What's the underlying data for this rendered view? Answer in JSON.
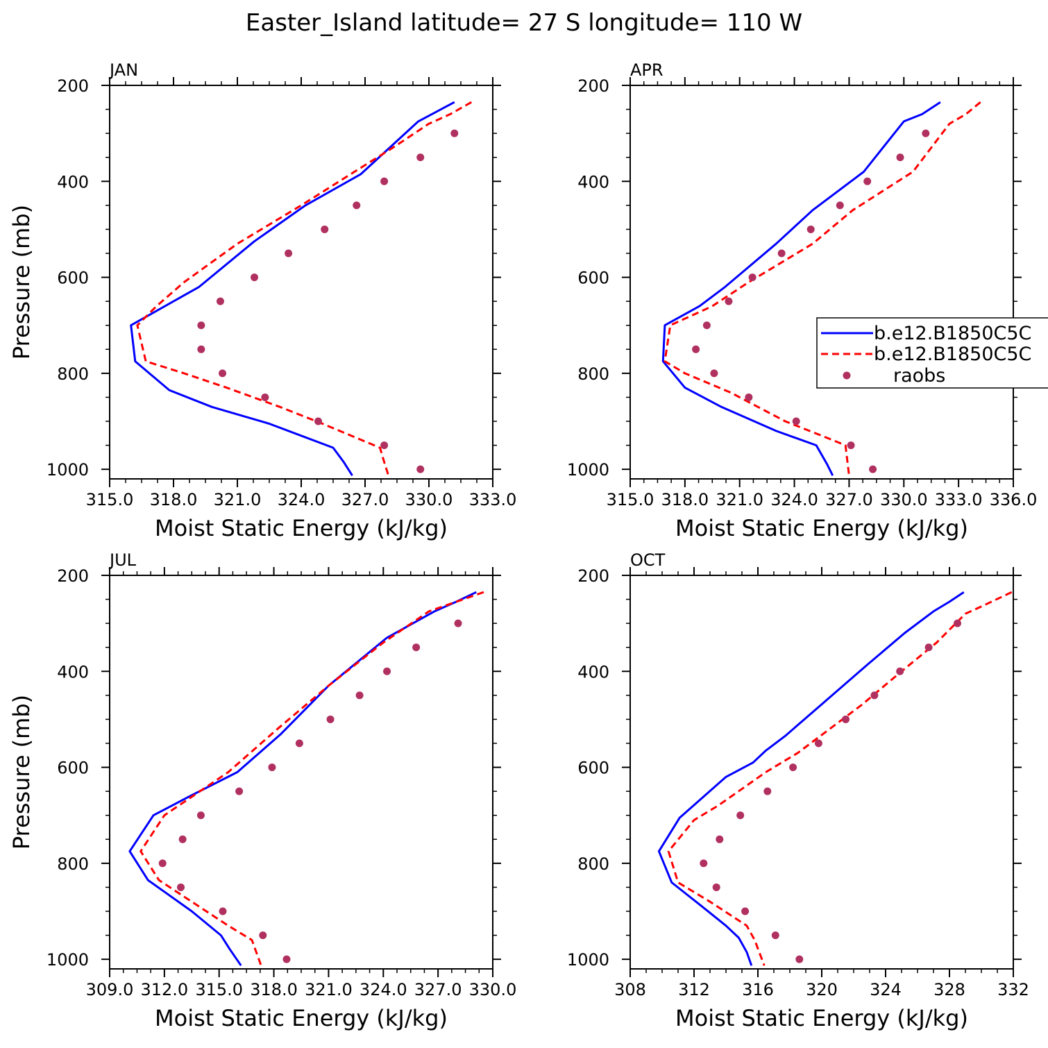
{
  "title": "Easter_Island  latitude= 27 S longitude= 110 W",
  "colors": {
    "model_a": "#0000ff",
    "model_b": "#ff0000",
    "raobs": "#b03060",
    "axes": "#000000",
    "background": "#ffffff"
  },
  "legend": {
    "entries": [
      "b.e12.B1850C5C",
      "b.e12.B1850C5C",
      "raobs"
    ],
    "location": "right side of APR panel"
  },
  "chart_data": [
    {
      "type": "line",
      "panel": "JAN",
      "xlabel": "Moist Static Energy (kJ/kg)",
      "ylabel": "Pressure (mb)",
      "xlim": [
        315,
        333
      ],
      "ylim": [
        1020,
        200
      ],
      "xticks": [
        315,
        318,
        321,
        324,
        327,
        330,
        333
      ],
      "xtick_labels": [
        "315.0",
        "318.0",
        "321.0",
        "324.0",
        "327.0",
        "330.0",
        "333.0"
      ],
      "yticks": [
        200,
        400,
        600,
        800,
        1000
      ],
      "ytick_labels": [
        "200",
        "400",
        "600",
        "800",
        "1000"
      ],
      "series": [
        {
          "name": "b.e12.B1850C5C",
          "style": "solid",
          "x": [
            331.2,
            329.5,
            326.8,
            324.2,
            321.8,
            319.2,
            317.6,
            316.0,
            316.2,
            317.8,
            319.8,
            322.5,
            324.0,
            325.5,
            326.0,
            326.4
          ],
          "y": [
            235,
            275,
            385,
            450,
            525,
            620,
            660,
            700,
            775,
            835,
            870,
            905,
            930,
            955,
            985,
            1013
          ]
        },
        {
          "name": "b.e12.B1850C5C",
          "style": "dashed",
          "x": [
            332.0,
            331.0,
            330.0,
            328.3,
            326.5,
            324.0,
            321.0,
            318.5,
            317.2,
            316.3,
            316.7,
            318.5,
            320.5,
            323.0,
            325.0,
            327.7,
            327.9,
            328.1
          ],
          "y": [
            235,
            260,
            280,
            330,
            380,
            450,
            530,
            610,
            660,
            700,
            775,
            800,
            830,
            870,
            905,
            955,
            985,
            1013
          ]
        },
        {
          "name": "raobs",
          "style": "dots",
          "x": [
            331.2,
            329.6,
            327.9,
            326.6,
            325.1,
            323.4,
            321.8,
            320.2,
            319.3,
            319.3,
            320.3,
            322.3,
            324.8,
            327.9,
            329.6
          ],
          "y": [
            300,
            350,
            400,
            450,
            500,
            550,
            600,
            650,
            700,
            750,
            800,
            850,
            900,
            950,
            1000
          ]
        }
      ]
    },
    {
      "type": "line",
      "panel": "APR",
      "xlabel": "Moist Static Energy (kJ/kg)",
      "ylabel": "",
      "xlim": [
        315,
        336
      ],
      "ylim": [
        1020,
        200
      ],
      "xticks": [
        315,
        318,
        321,
        324,
        327,
        330,
        333,
        336
      ],
      "xtick_labels": [
        "315.0",
        "318.0",
        "321.0",
        "324.0",
        "327.0",
        "330.0",
        "333.0",
        "336.0"
      ],
      "yticks": [
        200,
        400,
        600,
        800,
        1000
      ],
      "ytick_labels": [
        "200",
        "400",
        "600",
        "800",
        "1000"
      ],
      "series": [
        {
          "name": "b.e12.B1850C5C",
          "style": "solid",
          "x": [
            332.0,
            331.0,
            330.0,
            327.8,
            325.0,
            323.0,
            320.2,
            318.8,
            316.9,
            316.8,
            318.0,
            320.0,
            323.0,
            325.2,
            325.8,
            326.1
          ],
          "y": [
            235,
            260,
            275,
            380,
            460,
            530,
            620,
            660,
            700,
            775,
            830,
            870,
            920,
            950,
            990,
            1013
          ]
        },
        {
          "name": "b.e12.B1850C5C",
          "style": "dashed",
          "x": [
            334.2,
            333.4,
            332.5,
            330.5,
            327.2,
            325.0,
            321.5,
            319.5,
            317.2,
            316.9,
            318.0,
            320.5,
            323.5,
            325.5,
            326.8,
            327.0
          ],
          "y": [
            235,
            260,
            280,
            380,
            460,
            530,
            610,
            660,
            700,
            775,
            800,
            840,
            900,
            930,
            950,
            1013
          ]
        },
        {
          "name": "raobs",
          "style": "dots",
          "x": [
            331.2,
            329.8,
            328.0,
            326.5,
            324.9,
            323.3,
            321.7,
            320.4,
            319.2,
            318.6,
            319.6,
            321.5,
            324.1,
            327.1,
            328.3
          ],
          "y": [
            300,
            350,
            400,
            450,
            500,
            550,
            600,
            650,
            700,
            750,
            800,
            850,
            900,
            950,
            1000
          ]
        }
      ]
    },
    {
      "type": "line",
      "panel": "JUL",
      "xlabel": "Moist Static Energy (kJ/kg)",
      "ylabel": "Pressure (mb)",
      "xlim": [
        309,
        330
      ],
      "ylim": [
        1020,
        200
      ],
      "xticks": [
        309,
        312,
        315,
        318,
        321,
        324,
        327,
        330
      ],
      "xtick_labels": [
        "309.0",
        "312.0",
        "315.0",
        "318.0",
        "321.0",
        "324.0",
        "327.0",
        "330.0"
      ],
      "yticks": [
        200,
        400,
        600,
        800,
        1000
      ],
      "ytick_labels": [
        "200",
        "400",
        "600",
        "800",
        "1000"
      ],
      "series": [
        {
          "name": "b.e12.B1850C5C",
          "style": "solid",
          "x": [
            329.1,
            328.0,
            326.8,
            324.2,
            321.0,
            318.4,
            316.0,
            313.4,
            311.4,
            310.1,
            311.1,
            313.5,
            315.1,
            315.6,
            316.2
          ],
          "y": [
            235,
            255,
            275,
            330,
            430,
            530,
            610,
            660,
            700,
            775,
            835,
            900,
            950,
            980,
            1013
          ]
        },
        {
          "name": "b.e12.B1850C5C",
          "style": "dashed",
          "x": [
            329.5,
            326.5,
            324.0,
            321.0,
            318.2,
            315.5,
            312.0,
            310.7,
            311.7,
            313.5,
            315.5,
            316.8,
            317.3
          ],
          "y": [
            235,
            275,
            340,
            430,
            520,
            610,
            700,
            775,
            835,
            880,
            930,
            960,
            1013
          ]
        },
        {
          "name": "raobs",
          "style": "dots",
          "x": [
            328.1,
            325.8,
            324.2,
            322.7,
            321.1,
            319.4,
            317.9,
            316.1,
            314.0,
            313.0,
            311.9,
            312.9,
            315.2,
            317.4,
            318.7
          ],
          "y": [
            300,
            350,
            400,
            450,
            500,
            550,
            600,
            650,
            700,
            750,
            800,
            850,
            900,
            950,
            1000
          ]
        }
      ]
    },
    {
      "type": "line",
      "panel": "OCT",
      "xlabel": "Moist Static Energy (kJ/kg)",
      "ylabel": "",
      "xlim": [
        308,
        332
      ],
      "ylim": [
        1020,
        200
      ],
      "xticks": [
        308,
        312,
        316,
        320,
        324,
        328,
        332
      ],
      "xtick_labels": [
        "308",
        "312",
        "316",
        "320",
        "324",
        "328",
        "332"
      ],
      "yticks": [
        200,
        400,
        600,
        800,
        1000
      ],
      "ytick_labels": [
        "200",
        "400",
        "600",
        "800",
        "1000"
      ],
      "series": [
        {
          "name": "b.e12.B1850C5C",
          "style": "solid",
          "x": [
            328.9,
            328.0,
            327.0,
            325.2,
            322.9,
            320.3,
            317.7,
            316.5,
            315.7,
            314.0,
            311.1,
            309.8,
            310.6,
            312.5,
            314.0,
            314.8,
            315.3,
            315.6
          ],
          "y": [
            235,
            255,
            275,
            320,
            385,
            460,
            535,
            565,
            590,
            620,
            705,
            775,
            840,
            890,
            930,
            955,
            985,
            1013
          ]
        },
        {
          "name": "b.e12.B1850C5C",
          "style": "dashed",
          "x": [
            331.9,
            330.0,
            329.0,
            327.2,
            325.0,
            322.5,
            318.5,
            316.5,
            313.5,
            312.0,
            310.4,
            311.0,
            313.0,
            315.3,
            315.8,
            316.4
          ],
          "y": [
            235,
            265,
            280,
            340,
            400,
            470,
            570,
            610,
            680,
            710,
            775,
            840,
            880,
            930,
            960,
            1013
          ]
        },
        {
          "name": "raobs",
          "style": "dots",
          "x": [
            328.5,
            326.7,
            324.9,
            323.3,
            321.5,
            319.8,
            318.2,
            316.6,
            314.9,
            313.6,
            312.6,
            313.4,
            315.2,
            317.1,
            318.6
          ],
          "y": [
            300,
            350,
            400,
            450,
            500,
            550,
            600,
            650,
            700,
            750,
            800,
            850,
            900,
            950,
            1000
          ]
        }
      ]
    }
  ]
}
